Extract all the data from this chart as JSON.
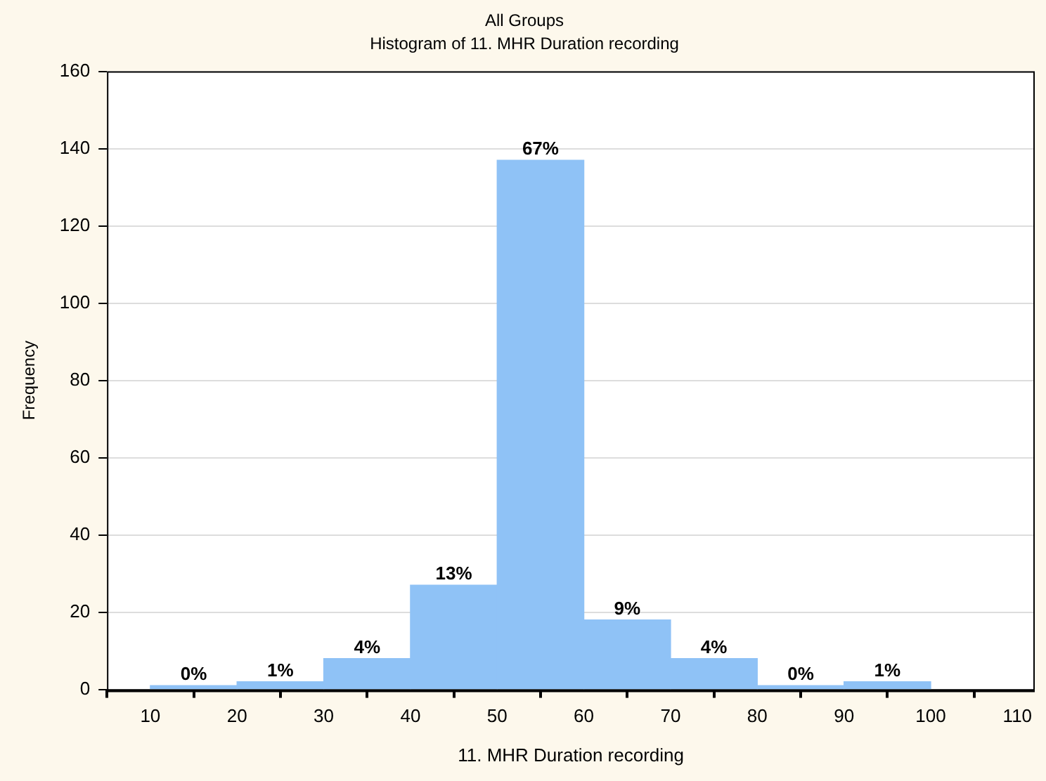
{
  "chart_data": {
    "type": "histogram",
    "title": "All Groups",
    "subtitle": "Histogram of 11. MHR Duration recording",
    "xlabel": "11. MHR Duration recording",
    "ylabel": "Frequency",
    "bins": [
      10,
      20,
      30,
      40,
      50,
      60,
      70,
      80,
      90,
      100
    ],
    "values": [
      1,
      2,
      8,
      27,
      137,
      18,
      8,
      1,
      2
    ],
    "annotations": [
      {
        "text": "0%",
        "x": 15,
        "y": 1
      },
      {
        "text": "1%",
        "x": 25,
        "y": 2
      },
      {
        "text": "4%",
        "x": 35,
        "y": 8
      },
      {
        "text": "13%",
        "x": 45,
        "y": 27
      },
      {
        "text": "67%",
        "x": 55,
        "y": 137
      },
      {
        "text": "9%",
        "x": 65,
        "y": 18
      },
      {
        "text": "4%",
        "x": 75,
        "y": 8
      },
      {
        "text": "0%",
        "x": 85,
        "y": 1
      },
      {
        "text": "1%",
        "x": 95,
        "y": 2
      }
    ],
    "color": "#8fc2f6",
    "xlim": [
      5,
      112
    ],
    "xticks": [
      10,
      20,
      30,
      40,
      50,
      60,
      70,
      80,
      90,
      100,
      110
    ],
    "ylim": [
      0,
      160
    ],
    "yticks": [
      0,
      20,
      40,
      60,
      80,
      100,
      120,
      140,
      160
    ],
    "grid": "y",
    "legend": false
  }
}
